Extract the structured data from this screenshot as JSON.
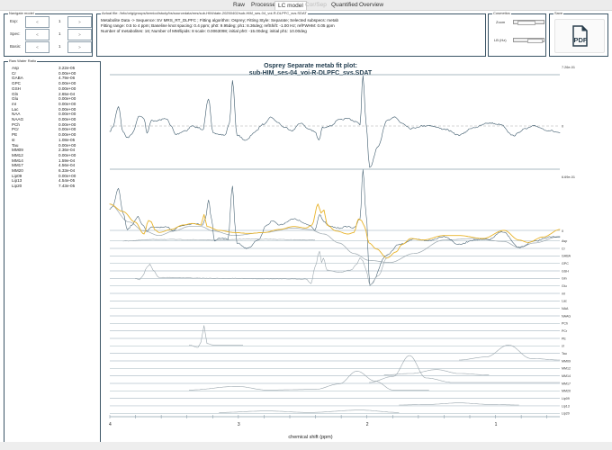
{
  "tabs": [
    {
      "label": "Raw",
      "state": "normal"
    },
    {
      "label": "Processed",
      "state": "normal"
    },
    {
      "label": "LC model",
      "state": "active"
    },
    {
      "label": "Cor/Sep",
      "state": "disabled"
    },
    {
      "label": "Quantified",
      "state": "normal"
    },
    {
      "label": "Overview",
      "state": "normal"
    }
  ],
  "navigate": {
    "title": "Navigate model",
    "rows": [
      {
        "label": "Exp:",
        "prev": "<",
        "value": "1",
        "next": ">"
      },
      {
        "label": "Spec:",
        "prev": "<",
        "value": "1",
        "next": ">"
      },
      {
        "label": "Basis:",
        "prev": "<",
        "value": "1",
        "next": ">"
      }
    ]
  },
  "info": {
    "title": "Actual file: /Info/orig/groups/kerniod/study/bs/sourcedata/mrs/sub-HIM/date-20250402/sub-HIM_ses-04_voi-R-DLPFC_svs.SDAT",
    "lines": [
      "Metabolite Data -> Sequence: SV MRS_RT_DLPFC ; Fitting algorithm: Osprey; Fitting Style: Separate; Selected subspecs: metab",
      "Fitting range: 0.5 to 4 ppm; Baseline knot spacing: 0.4 ppm; ph0: 9.95deg; ph1: 8.36deg; refShift: -1.00 Hz; refFWHM: 0.05 ppm",
      "Number of metabolites: 16; Number of MM/lipids: 8 scale: 0.0063098; initial ph0: -15.00deg; initial ph1: 10.00deg"
    ]
  },
  "cosmetics": {
    "title": "Cosmetics",
    "zoom_label": "Zoom",
    "lb_label": "LB (Hz)",
    "zoom_level": 0.3,
    "lb_level": 0.45
  },
  "save": {
    "title": "Save",
    "icon": "pdf-file-icon",
    "icon_text": "PDF"
  },
  "ratio": {
    "title": "Raw Water Ratio",
    "rows": [
      {
        "name": "Asp",
        "value": "3.22e-05"
      },
      {
        "name": "Cr",
        "value": "0.00e+00"
      },
      {
        "name": "GABA",
        "value": "4.79e-06"
      },
      {
        "name": "GPC",
        "value": "0.00e+00"
      },
      {
        "name": "GSH",
        "value": "0.00e+00"
      },
      {
        "name": "Gln",
        "value": "2.65e-04"
      },
      {
        "name": "Glu",
        "value": "0.00e+00"
      },
      {
        "name": "mI",
        "value": "0.00e+00"
      },
      {
        "name": "Lac",
        "value": "0.00e+00"
      },
      {
        "name": "NAA",
        "value": "0.00e+00"
      },
      {
        "name": "NAAG",
        "value": "0.00e+00"
      },
      {
        "name": "PCh",
        "value": "0.00e+00"
      },
      {
        "name": "PCr",
        "value": "0.00e+00"
      },
      {
        "name": "PE",
        "value": "0.00e+00"
      },
      {
        "name": "sI",
        "value": "1.08e-05"
      },
      {
        "name": "Tau",
        "value": "0.00e+00"
      },
      {
        "name": "MM09",
        "value": "2.36e-04"
      },
      {
        "name": "MM12",
        "value": "0.00e+00"
      },
      {
        "name": "MM14",
        "value": "1.59e-04"
      },
      {
        "name": "MM17",
        "value": "4.56e-04"
      },
      {
        "name": "MM20",
        "value": "6.33e-04"
      },
      {
        "name": "Lip09",
        "value": "0.00e+00"
      },
      {
        "name": "Lip13",
        "value": "4.54e-05"
      },
      {
        "name": "Lip20",
        "value": "7.43e-05"
      }
    ]
  },
  "plot": {
    "title_line1": "Osprey Separate metab fit plot:",
    "title_line2": "sub-HIM_ses-04_voi-R-DLPFC_svs.SDAT",
    "residual_max_label": "7.26e-01",
    "residual_zero_label": "0",
    "spectrum_max_label": "6.69e-01",
    "spectrum_zero_label": "0",
    "row_labels": [
      "Asp",
      "Cr",
      "GABA",
      "GPC",
      "GSH",
      "Gln",
      "Glu",
      "mI",
      "Lac",
      "NAA",
      "NAAG",
      "PCh",
      "PCr",
      "PE",
      "sI",
      "Tau",
      "MM09",
      "MM12",
      "MM14",
      "MM17",
      "MM20",
      "Lip09",
      "Lip13",
      "Lip20"
    ],
    "xlabel": "chemical shift (ppm)",
    "xlim": [
      4,
      0.5
    ],
    "x_ticks": [
      "4",
      "3",
      "2",
      "1"
    ],
    "colors": {
      "data": "#3d5a6c",
      "fit": "#e8b32a",
      "baseline": "#9aa6ad",
      "rows": "#b5c3cb",
      "axis": "#8ea0ab"
    }
  }
}
